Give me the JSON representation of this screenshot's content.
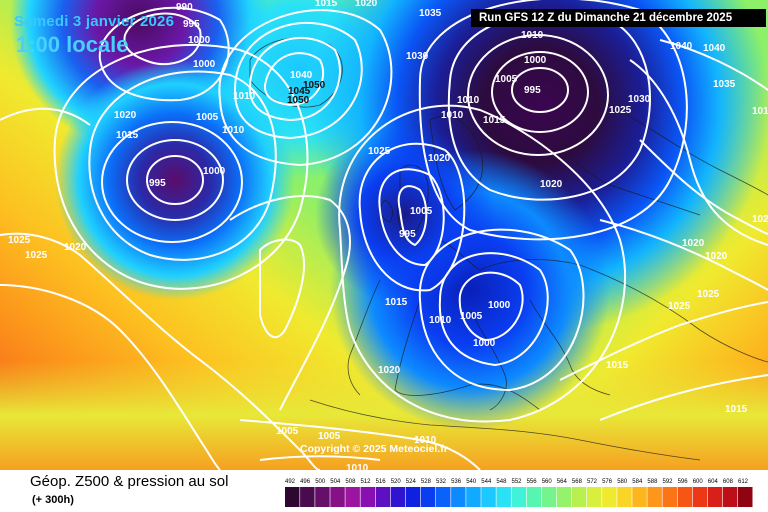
{
  "header": {
    "date": "Samedi 3 janvier 2026",
    "time": "1:00 locale",
    "run": "Run GFS 12 Z du Dimanche 21 décembre 2025"
  },
  "footer": {
    "title": "Géop. Z500 & pression au sol",
    "subtitle": "(+ 300h)",
    "copyright": "Copyright © 2025 Meteociel.fr"
  },
  "legend": {
    "ticks": [
      "492",
      "496",
      "500",
      "504",
      "508",
      "512",
      "516",
      "520",
      "524",
      "528",
      "532",
      "536",
      "540",
      "544",
      "548",
      "552",
      "556",
      "560",
      "564",
      "568",
      "572",
      "576",
      "580",
      "584",
      "588",
      "592",
      "596",
      "600",
      "604",
      "608",
      "612"
    ],
    "colors": [
      "#2e0730",
      "#4a0a4e",
      "#650e6a",
      "#861187",
      "#9d14a0",
      "#8a0fb0",
      "#5d0fc2",
      "#2f14d0",
      "#1020e0",
      "#0a3df0",
      "#0a62fa",
      "#0d8aff",
      "#12aaff",
      "#1bc8ff",
      "#2ae2f5",
      "#3ff2d8",
      "#56f5b0",
      "#74f48a",
      "#96f26a",
      "#b8f050",
      "#d8ef3d",
      "#f0ea2f",
      "#fbd525",
      "#fdb61e",
      "#fd961a",
      "#fb7517",
      "#f65516",
      "#ec3816",
      "#d81f18",
      "#bc0f18",
      "#8f0410"
    ]
  },
  "pressure_labels": [
    {
      "text": "995"
    },
    {
      "text": "990"
    },
    {
      "text": "1000"
    },
    {
      "text": "1000"
    },
    {
      "text": "1020"
    },
    {
      "text": "1015"
    },
    {
      "text": "1005"
    },
    {
      "text": "1010"
    },
    {
      "text": "1010"
    },
    {
      "text": "995"
    },
    {
      "text": "1000"
    },
    {
      "text": "1025"
    },
    {
      "text": "1025"
    },
    {
      "text": "1020"
    },
    {
      "text": "1040"
    },
    {
      "text": "1050"
    },
    {
      "text": "1045"
    },
    {
      "text": "1050"
    },
    {
      "text": "1015"
    },
    {
      "text": "1020"
    },
    {
      "text": "1035"
    },
    {
      "text": "1030"
    },
    {
      "text": "1010"
    },
    {
      "text": "1005"
    },
    {
      "text": "1000"
    },
    {
      "text": "995"
    },
    {
      "text": "1010"
    },
    {
      "text": "1010"
    },
    {
      "text": "1015"
    },
    {
      "text": "1020"
    },
    {
      "text": "1025"
    },
    {
      "text": "1030"
    },
    {
      "text": "1040"
    },
    {
      "text": "1040"
    },
    {
      "text": "1035"
    },
    {
      "text": "1025"
    },
    {
      "text": "1005"
    },
    {
      "text": "995"
    },
    {
      "text": "1020"
    },
    {
      "text": "1020"
    },
    {
      "text": "1015"
    },
    {
      "text": "1010"
    },
    {
      "text": "1000"
    },
    {
      "text": "1005"
    },
    {
      "text": "1000"
    },
    {
      "text": "1020"
    },
    {
      "text": "1020"
    },
    {
      "text": "1025"
    },
    {
      "text": "1025"
    },
    {
      "text": "1015"
    },
    {
      "text": "1015"
    },
    {
      "text": "1005"
    },
    {
      "text": "1005"
    },
    {
      "text": "1010"
    },
    {
      "text": "1010"
    },
    {
      "text": "1015"
    },
    {
      "text": "1020"
    }
  ]
}
